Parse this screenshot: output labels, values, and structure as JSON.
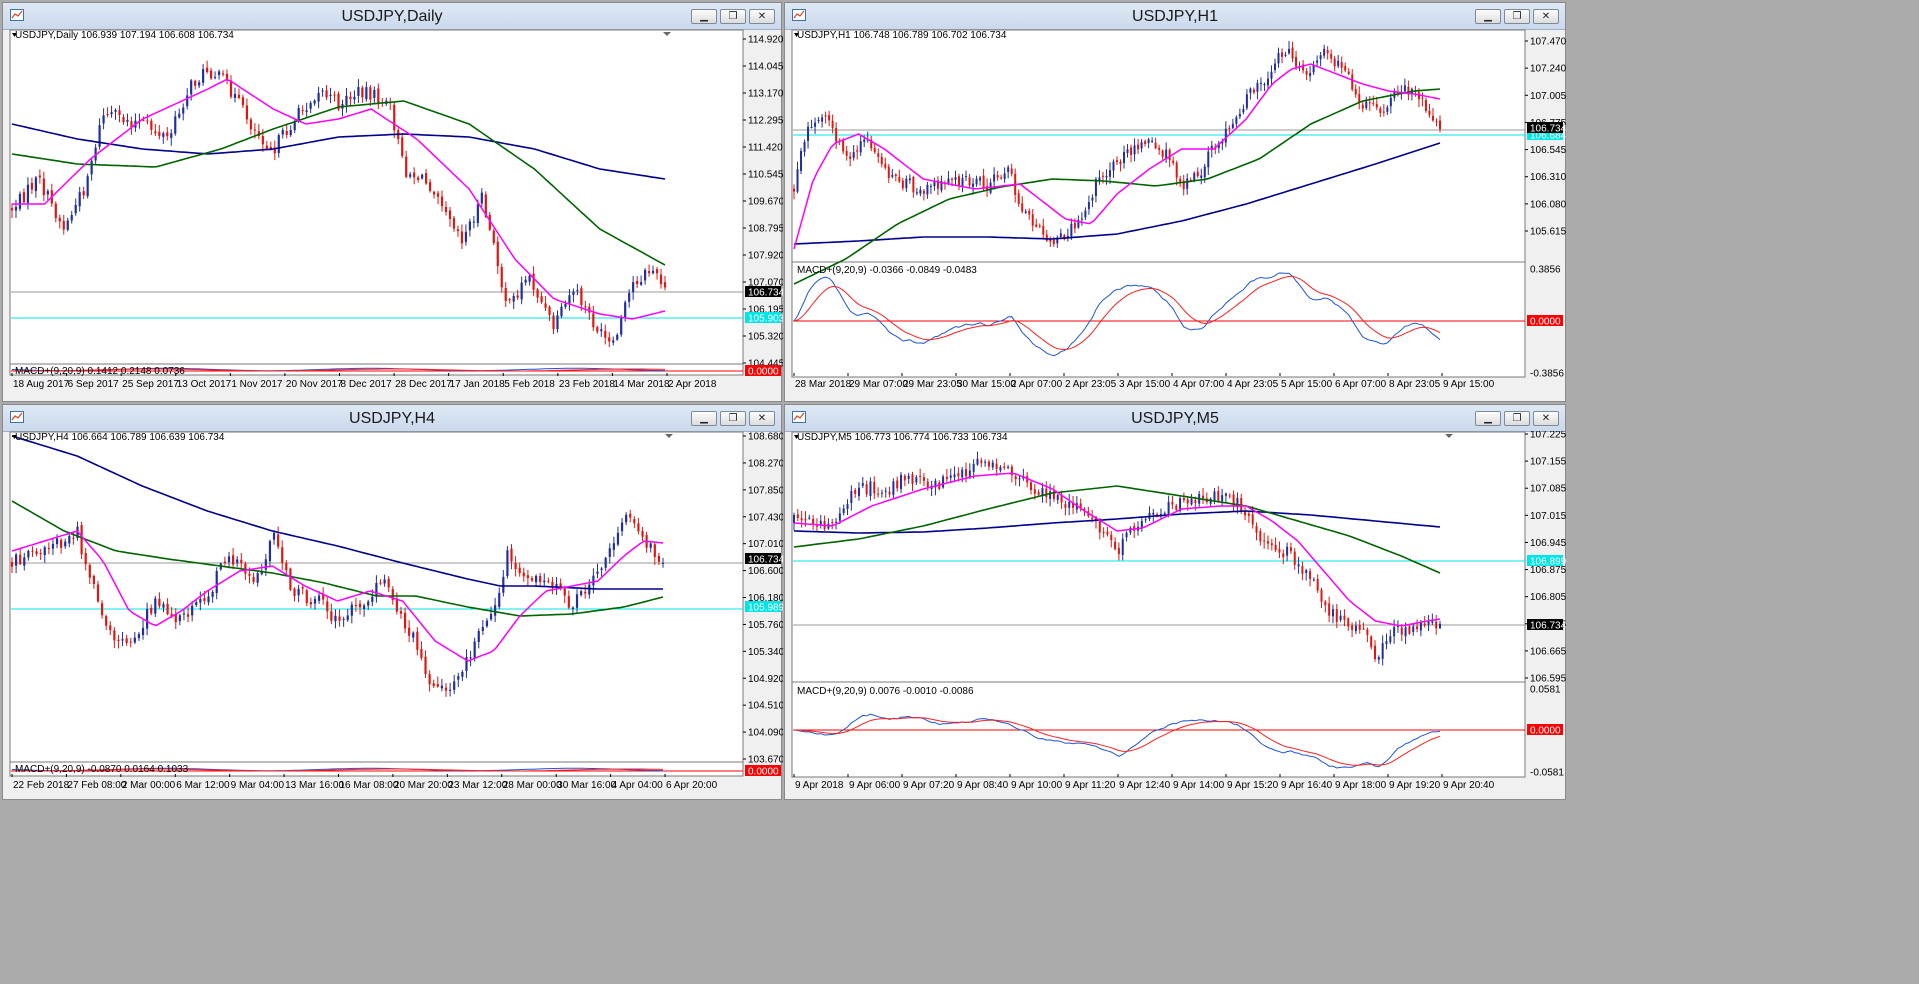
{
  "windows": [
    {
      "title": "USDJPY,Daily",
      "info": "USDJPY,Daily  106.939 107.194 106.608 106.734",
      "y_ticks": [
        "114.920",
        "114.045",
        "113.170",
        "112.295",
        "111.420",
        "110.545",
        "109.670",
        "108.795",
        "107.920",
        "107.070",
        "106.195",
        "105.320",
        "104.445"
      ],
      "price_tag": "106.734",
      "line_tag": "105.903",
      "macd_label": "MACD+(9,20,9) 0.1412 0.2148 0.0736",
      "macd_tags": [
        "0.0000"
      ],
      "x_ticks": [
        "18 Aug 2017",
        "6 Sep 2017",
        "25 Sep 2017",
        "13 Oct 2017",
        "1 Nov 2017",
        "20 Nov 2017",
        "8 Dec 2017",
        "28 Dec 2017",
        "17 Jan 2018",
        "5 Feb 2018",
        "23 Feb 2018",
        "14 Mar 2018",
        "2 Apr 2018"
      ]
    },
    {
      "title": "USDJPY,H1",
      "info": "USDJPY,H1  106.748 106.789 106.702 106.734",
      "y_ticks": [
        "107.470",
        "107.240",
        "107.005",
        "106.775",
        "106.545",
        "106.310",
        "106.080",
        "105.615"
      ],
      "price_tag": "106.734",
      "line_tag": "106.684",
      "macd_label": "MACD+(9,20,9) -0.0366 -0.0849 -0.0483",
      "macd_tags": [
        "0.3856",
        "0.0000",
        "-0.3856"
      ],
      "x_ticks": [
        "28 Mar 2018",
        "29 Mar 07:00",
        "29 Mar 23:05",
        "30 Mar 15:00",
        "2 Apr 07:00",
        "2 Apr 23:05",
        "3 Apr 15:00",
        "4 Apr 07:00",
        "4 Apr 23:05",
        "5 Apr 15:00",
        "6 Apr 07:00",
        "8 Apr 23:05",
        "9 Apr 15:00"
      ]
    },
    {
      "title": "USDJPY,H4",
      "info": "USDJPY,H4  106.664 106.789 106.639 106.734",
      "y_ticks": [
        "108.680",
        "108.270",
        "107.850",
        "107.430",
        "107.010",
        "106.600",
        "106.180",
        "105.760",
        "105.340",
        "104.920",
        "104.510",
        "104.090",
        "103.670"
      ],
      "price_tag": "106.734",
      "line_tag": "105.989",
      "macd_label": "MACD+(9,20,9) -0.0870 0.0164 0.1033",
      "macd_tags": [
        "0.0000"
      ],
      "x_ticks": [
        "22 Feb 2018",
        "27 Feb 08:00",
        "2 Mar 00:00",
        "6 Mar 12:00",
        "9 Mar 04:00",
        "13 Mar 16:00",
        "16 Mar 08:00",
        "20 Mar 20:00",
        "23 Mar 12:00",
        "28 Mar 00:00",
        "30 Mar 16:00",
        "4 Apr 04:00",
        "6 Apr 20:00"
      ]
    },
    {
      "title": "USDJPY,M5",
      "info": "USDJPY,M5  106.773 106.774 106.733 106.734",
      "y_ticks": [
        "107.225",
        "107.155",
        "107.085",
        "107.015",
        "106.945",
        "106.875",
        "106.805",
        "106.735",
        "106.665",
        "106.595"
      ],
      "price_tag": "106.734",
      "line_tag": "106.899",
      "macd_label": "MACD+(9,20,9) 0.0076 -0.0010 -0.0086",
      "macd_tags": [
        "0.0581",
        "0.0000",
        "-0.0581"
      ],
      "x_ticks": [
        "9 Apr 2018",
        "9 Apr 06:00",
        "9 Apr 07:20",
        "9 Apr 08:40",
        "9 Apr 10:00",
        "9 Apr 11:20",
        "9 Apr 12:40",
        "9 Apr 14:00",
        "9 Apr 15:20",
        "9 Apr 16:40",
        "9 Apr 18:00",
        "9 Apr 19:20",
        "9 Apr 20:40"
      ]
    }
  ],
  "colors": {
    "bull": "#1f2f9e",
    "bear": "#e3150f",
    "ma_fast": "#ff00ff",
    "ma_mid": "#006400",
    "ma_slow": "#00008b",
    "hline_cyan": "#00e5e5",
    "macd_main": "#1e56d8",
    "macd_signal": "#ff2020",
    "tag_black": "#000000",
    "tag_red": "#ff0000"
  },
  "icons": [
    "chart-window-icon",
    "minimize-icon",
    "restore-icon",
    "close-icon"
  ]
}
